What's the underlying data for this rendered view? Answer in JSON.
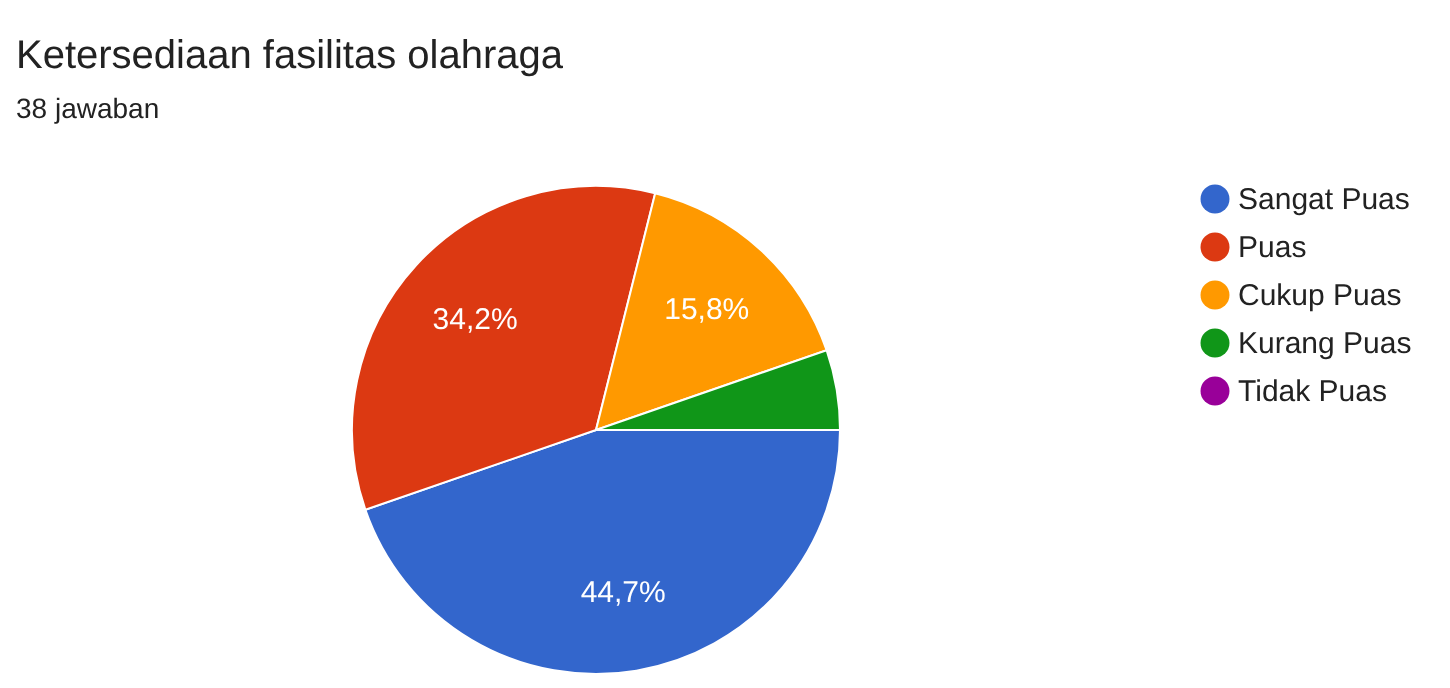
{
  "chart_data": {
    "type": "pie",
    "title": "Ketersediaan fasilitas olahraga",
    "subtitle": "38 jawaban",
    "categories": [
      "Sangat Puas",
      "Puas",
      "Cukup Puas",
      "Kurang Puas",
      "Tidak Puas"
    ],
    "values": [
      44.7,
      34.2,
      15.8,
      5.3,
      0
    ],
    "colors": [
      "#3366cc",
      "#dc3912",
      "#ff9900",
      "#109618",
      "#990099"
    ],
    "value_labels": [
      "44,7%",
      "34,2%",
      "15,8%",
      null,
      null
    ],
    "legend": "right"
  }
}
